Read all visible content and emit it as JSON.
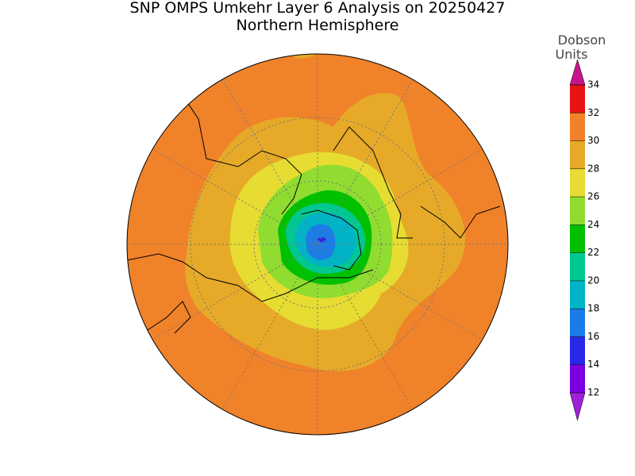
{
  "title": "SNP OMPS Umkehr Layer 6 Analysis on 20250427",
  "subtitle": "Northern Hemisphere",
  "colorbar": {
    "label_lines": [
      "Dobson",
      "Units"
    ],
    "ticks": [
      12,
      14,
      16,
      18,
      20,
      22,
      24,
      26,
      28,
      30,
      32,
      34
    ],
    "colors": [
      "#a020d8",
      "#7c00e0",
      "#2828e6",
      "#1a7ce8",
      "#00b4c8",
      "#00c890",
      "#00c000",
      "#90dc30",
      "#e6dc32",
      "#e6aa28",
      "#f0822a",
      "#e61414",
      "#c8148c"
    ]
  }
}
